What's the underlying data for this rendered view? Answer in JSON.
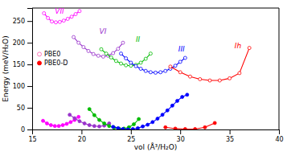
{
  "chart_data": {
    "type": "line",
    "xlabel": "vol (Å³/H₂O)",
    "ylabel": "Energy (meV/H₂O)",
    "xlim": [
      15,
      40
    ],
    "ylim": [
      0,
      280
    ],
    "xticks": [
      15,
      20,
      25,
      30,
      35,
      40
    ],
    "yticks": [
      0,
      50,
      100,
      150,
      200,
      250
    ],
    "grid": false,
    "legend": "center left",
    "legend_entries": [
      {
        "name": "PBE0",
        "color": "#ff69b4",
        "marker": "circle-open"
      },
      {
        "name": "PBE0-D",
        "color": "#ff0000",
        "marker": "circle"
      }
    ],
    "annotations": [
      {
        "text": "VII",
        "x": 17.3,
        "y": 266,
        "color": "#ff00ff"
      },
      {
        "text": "VI",
        "x": 21.8,
        "y": 218,
        "color": "#9933cc"
      },
      {
        "text": "II",
        "x": 25.5,
        "y": 200,
        "color": "#00bb00"
      },
      {
        "text": "III",
        "x": 29.8,
        "y": 178,
        "color": "#0000ff"
      },
      {
        "text": "Ih",
        "x": 35.5,
        "y": 185,
        "color": "#ff0000"
      }
    ],
    "series": [
      {
        "color": "#ff00ff",
        "marker": "circle-open",
        "line_style": "solid",
        "x": [
          16.2,
          16.6,
          17.0,
          17.4,
          17.8,
          18.2,
          18.6,
          19.0,
          19.4,
          19.8
        ],
        "values": [
          268,
          257,
          249,
          247,
          248,
          251,
          255,
          260,
          266,
          273
        ]
      },
      {
        "color": "#ff00ff",
        "marker": "circle",
        "line_style": "solid",
        "x": [
          16.1,
          16.5,
          16.9,
          17.3,
          17.7,
          18.1,
          18.5,
          18.9,
          19.3,
          19.7
        ],
        "values": [
          20,
          14,
          10,
          8,
          8,
          10,
          13,
          17,
          22,
          29
        ]
      },
      {
        "color": "#9933cc",
        "marker": "circle-open",
        "line_style": "solid",
        "x": [
          19.2,
          19.7,
          20.2,
          20.7,
          21.2,
          21.7,
          22.2,
          22.7,
          23.2,
          23.7,
          24.2
        ],
        "values": [
          213,
          200,
          190,
          181,
          174,
          170,
          168,
          170,
          176,
          186,
          200
        ]
      },
      {
        "color": "#9933cc",
        "marker": "circle",
        "line_style": "solid",
        "x": [
          18.8,
          19.3,
          19.8,
          20.3,
          20.8,
          21.3,
          21.8,
          22.3,
          22.8
        ],
        "values": [
          34,
          26,
          19,
          14,
          10,
          8,
          7,
          9,
          14
        ]
      },
      {
        "color": "#00bb00",
        "marker": "circle-open",
        "line_style": "solid",
        "x": [
          22.0,
          22.5,
          23.0,
          23.5,
          24.0,
          24.5,
          25.0,
          25.5,
          26.0,
          26.5,
          27.0
        ],
        "values": [
          185,
          175,
          166,
          158,
          152,
          148,
          147,
          149,
          154,
          163,
          175
        ]
      },
      {
        "color": "#00bb00",
        "marker": "circle",
        "line_style": "solid",
        "x": [
          20.8,
          21.3,
          21.8,
          22.3,
          22.8,
          23.3,
          23.8,
          24.3,
          24.8,
          25.3,
          25.8
        ],
        "values": [
          47,
          33,
          22,
          14,
          8,
          4,
          2,
          2,
          5,
          12,
          24
        ]
      },
      {
        "color": "#0000ff",
        "marker": "circle-open",
        "line_style": "solid",
        "x": [
          24.0,
          24.5,
          25.0,
          25.5,
          26.0,
          26.5,
          27.0,
          27.5,
          28.0,
          28.5,
          29.0,
          29.5,
          30.0,
          30.5
        ],
        "values": [
          175,
          164,
          154,
          146,
          140,
          135,
          132,
          131,
          132,
          135,
          140,
          147,
          156,
          165
        ]
      },
      {
        "color": "#0000ff",
        "marker": "circle",
        "line_style": "solid",
        "x": [
          23.2,
          23.7,
          24.2,
          24.7,
          25.2,
          25.7,
          26.2,
          26.7,
          27.2,
          27.7,
          28.2,
          28.7,
          29.2,
          29.7,
          30.2,
          30.7
        ],
        "values": [
          6,
          3,
          1,
          0,
          1,
          3,
          7,
          11,
          17,
          25,
          34,
          44,
          55,
          66,
          75,
          80
        ]
      },
      {
        "color": "#ff0000",
        "marker": "circle-open",
        "line_style": "solid",
        "x": [
          29.0,
          30.0,
          31.0,
          32.0,
          33.0,
          34.0,
          35.0,
          36.0,
          37.0
        ],
        "values": [
          145,
          132,
          122,
          116,
          113,
          113,
          118,
          130,
          188
        ]
      },
      {
        "color": "#ff0000",
        "marker": "circle",
        "line_style": "solid",
        "x": [
          28.5,
          29.5,
          30.5,
          31.5,
          32.5,
          33.5
        ],
        "values": [
          5,
          2,
          1,
          1,
          5,
          15
        ]
      }
    ]
  }
}
